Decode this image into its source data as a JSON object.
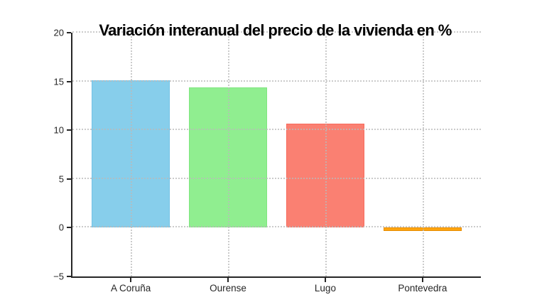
{
  "figure": {
    "background": "#ffffff"
  },
  "chart_data": {
    "type": "bar",
    "title": "Variación interanual del precio de la vivienda en %",
    "categories": [
      "A Coruña",
      "Ourense",
      "Lugo",
      "Pontevedra"
    ],
    "values": [
      15.1,
      14.4,
      10.7,
      -0.3
    ],
    "bar_colors": [
      "#87ceeb",
      "#90ee90",
      "#fa8072",
      "#ffa510"
    ],
    "bar_edge_colors": [
      "#74c2e6",
      "#7fe67f",
      "#f76a5c",
      "#e68c00"
    ],
    "xlabel": "",
    "ylabel": "",
    "ylim": [
      -5,
      20
    ],
    "yticks": [
      -5,
      0,
      5,
      10,
      15,
      20
    ],
    "ytick_labels": [
      "−5",
      "0",
      "5",
      "10",
      "15",
      "20"
    ],
    "grid": "dotted",
    "grid_color": "#b9b9b9",
    "axis_color": "#262626",
    "legend": "none",
    "bar_width_fraction": 0.8,
    "x_padding": 0.6
  }
}
